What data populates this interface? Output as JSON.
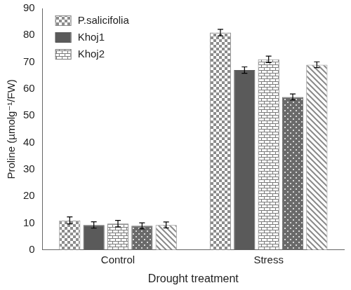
{
  "chart_data": {
    "type": "bar",
    "y_label": "Proline (µmolg⁻¹/FW)",
    "x_label": "Drought treatment",
    "categories": [
      "Control",
      "Stress"
    ],
    "series": [
      {
        "name": "P.salicifolia",
        "color": "#8c8c8c",
        "values": [
          11,
          81
        ],
        "errors": [
          1.3,
          1.2
        ]
      },
      {
        "name": "Khoj1",
        "color": "#5a5a5a",
        "values": [
          9.3,
          67
        ],
        "errors": [
          1.2,
          1.2
        ]
      },
      {
        "name": "Khoj2",
        "color": "#7a7a7a",
        "values": [
          9.8,
          71
        ],
        "errors": [
          1.2,
          1.2
        ]
      },
      {
        "color": "#6a6a6a",
        "values": [
          9,
          57
        ],
        "errors": [
          1.1,
          1.1
        ]
      },
      {
        "color": "#8a8a8a",
        "values": [
          9.3,
          69
        ],
        "errors": [
          1.1,
          1.1
        ]
      }
    ],
    "ylim": [
      0,
      90
    ],
    "yticks": [
      0,
      10,
      20,
      30,
      40,
      50,
      60,
      70,
      80,
      90
    ],
    "grid": false,
    "legend": "top-left"
  }
}
